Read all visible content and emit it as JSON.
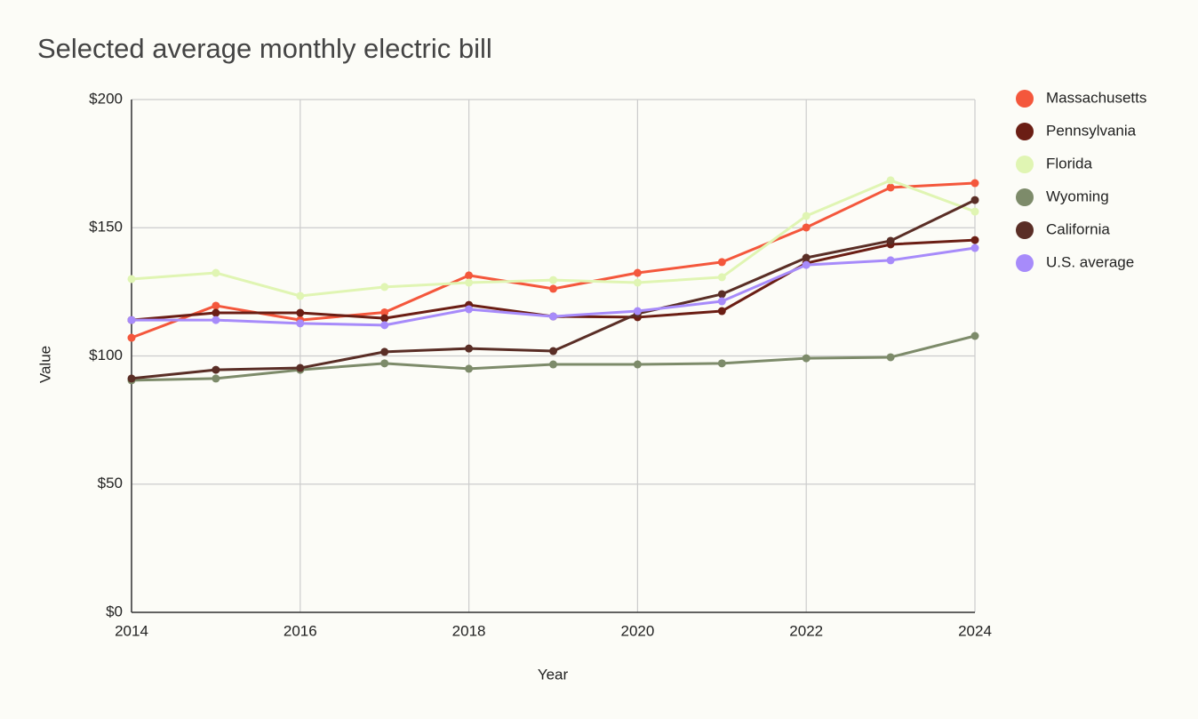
{
  "chart_data": {
    "type": "line",
    "title": "Selected average monthly electric bill",
    "x_label": "Year",
    "y_label": "Value",
    "x": [
      2014,
      2015,
      2016,
      2017,
      2018,
      2019,
      2020,
      2021,
      2022,
      2023,
      2024
    ],
    "series": [
      {
        "name": "Massachusetts",
        "color": "#f4573c",
        "values": [
          107.1,
          119.6,
          114,
          117,
          131.4,
          126.2,
          132.4,
          136.6,
          150.1,
          165.7,
          167.4
        ]
      },
      {
        "name": "Pennsylvania",
        "color": "#6b1e14",
        "values": [
          114,
          116.8,
          116.8,
          114.7,
          119.9,
          115.4,
          115.1,
          117.5,
          136.2,
          143.5,
          145.2
        ]
      },
      {
        "name": "Florida",
        "color": "#e0f5b3",
        "values": [
          130,
          132.4,
          123.4,
          126.9,
          128.6,
          129.6,
          128.6,
          130.7,
          154.6,
          168.5,
          156.3
        ]
      },
      {
        "name": "Wyoming",
        "color": "#7d8b6a",
        "values": [
          90.5,
          91.2,
          94.6,
          97.1,
          95,
          96.7,
          96.7,
          97.1,
          99.1,
          99.5,
          107.8
        ]
      },
      {
        "name": "California",
        "color": "#5a2e26",
        "values": [
          91.2,
          94.6,
          95.3,
          101.6,
          102.9,
          101.9,
          116.5,
          124.1,
          138.3,
          144.9,
          160.8
        ]
      },
      {
        "name": "U.S. average",
        "color": "#a78bfa",
        "values": [
          114,
          114,
          112.7,
          112,
          118.2,
          115.4,
          117.5,
          121.3,
          135.5,
          137.3,
          142.1
        ]
      }
    ],
    "xlim": [
      2014,
      2024
    ],
    "xticks": [
      2014,
      2016,
      2018,
      2020,
      2022,
      2024
    ],
    "ylim": [
      0,
      200
    ],
    "yticks": [
      {
        "value": 0,
        "label": "$0"
      },
      {
        "value": 50,
        "label": "$50"
      },
      {
        "value": 100,
        "label": "$100"
      },
      {
        "value": 150,
        "label": "$150"
      },
      {
        "value": 200,
        "label": "$200"
      }
    ],
    "grid": true,
    "legend": "right"
  }
}
